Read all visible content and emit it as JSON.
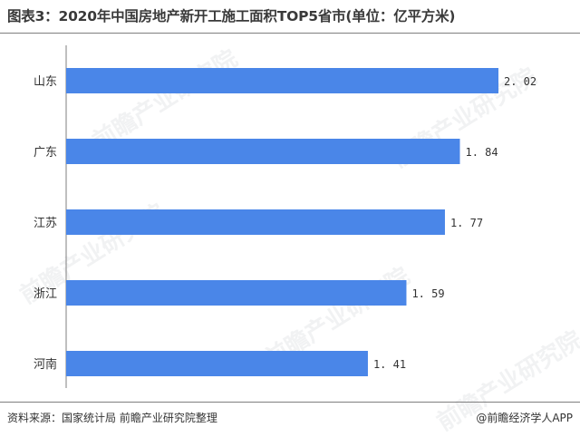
{
  "title": "图表3：2020年中国房地产新开工施工面积TOP5省市(单位：亿平方米)",
  "source": "资料来源：国家统计局 前瞻产业研究院整理",
  "credit": "@前瞻经济学人APP",
  "watermark": "前瞻产业研究院",
  "colors": {
    "bar": "#4a86e8",
    "axis": "#7f7f7f",
    "text": "#333333"
  },
  "chart_data": {
    "type": "bar",
    "orientation": "horizontal",
    "categories": [
      "山东",
      "广东",
      "江苏",
      "浙江",
      "河南"
    ],
    "values": [
      2.02,
      1.84,
      1.77,
      1.59,
      1.41
    ],
    "value_labels": [
      "2. 02",
      "1. 84",
      "1. 77",
      "1. 59",
      "1. 41"
    ],
    "title": "图表3：2020年中国房地产新开工施工面积TOP5省市(单位：亿平方米)",
    "xlabel": "",
    "ylabel": "",
    "xlim": [
      0,
      2.02
    ],
    "grid": false,
    "legend": "none"
  }
}
